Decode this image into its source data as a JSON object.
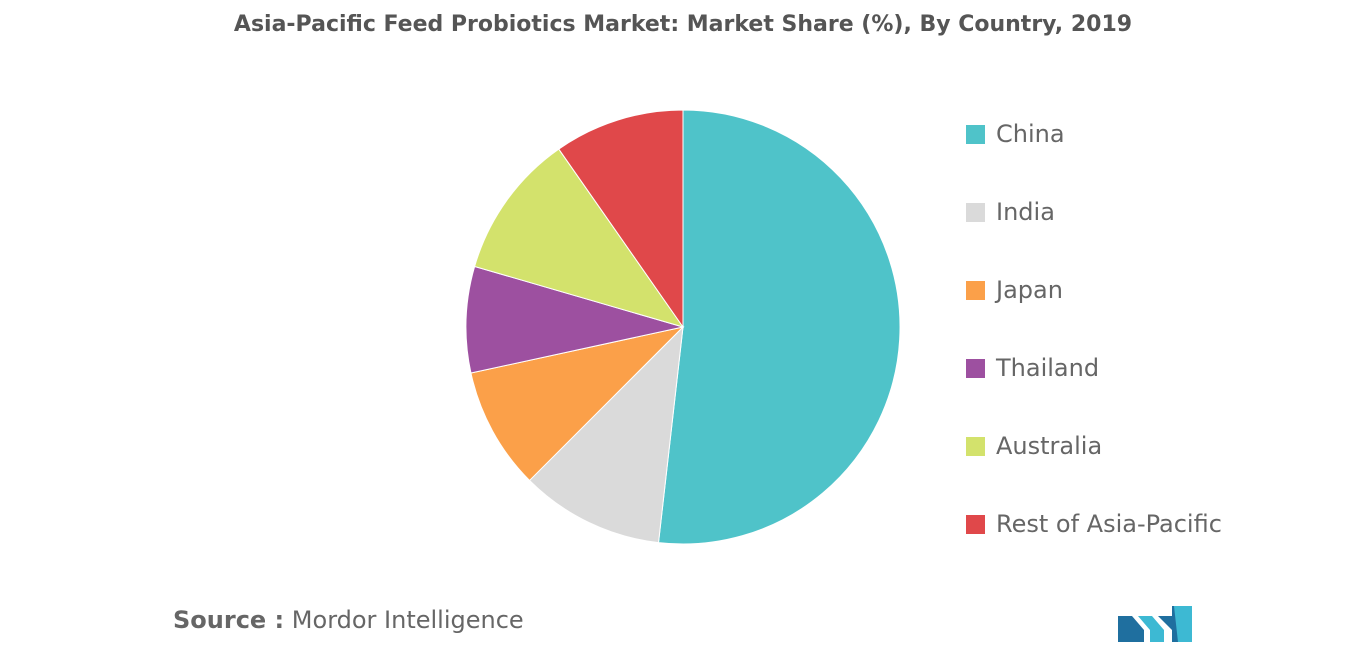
{
  "chart_data": {
    "type": "pie",
    "title": "Asia-Pacific Feed Probiotics Market: Market Share (%), By Country, 2019",
    "categories": [
      "China",
      "India",
      "Japan",
      "Thailand",
      "Australia",
      "Rest of Asia-Pacific"
    ],
    "values": [
      51.8,
      10.7,
      9.1,
      7.9,
      10.8,
      9.7
    ],
    "colors": [
      "#4fc3c9",
      "#dadada",
      "#fba049",
      "#9d50a0",
      "#d3e26c",
      "#e0484a"
    ],
    "legend_position": "right",
    "start_angle_deg": 0,
    "direction": "clockwise"
  },
  "source": {
    "label": "Source :",
    "text": "Mordor Intelligence"
  },
  "logo": {
    "name": "mordor-intelligence-logo",
    "colors": [
      "#1f6f9f",
      "#3db9d3"
    ]
  }
}
